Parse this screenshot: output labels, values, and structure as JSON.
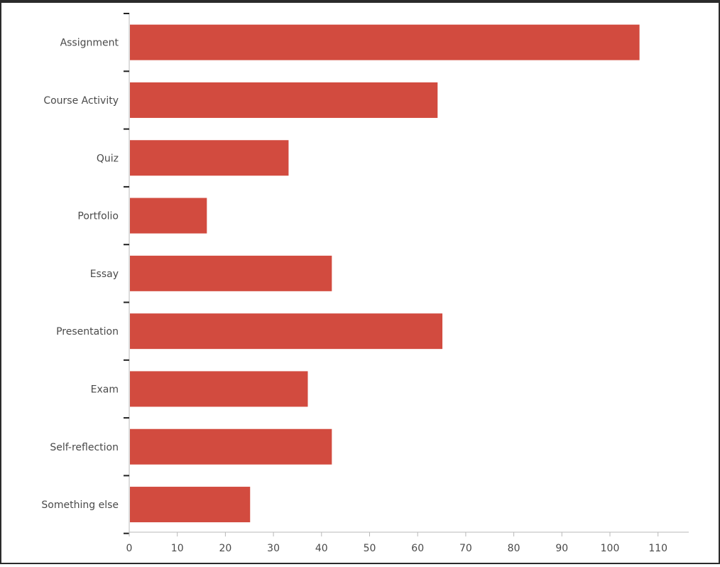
{
  "chart_data": {
    "type": "bar",
    "orientation": "horizontal",
    "title": "",
    "xlabel": "",
    "ylabel": "",
    "categories": [
      "Assignment",
      "Course Activity",
      "Quiz",
      "Portfolio",
      "Essay",
      "Presentation",
      "Exam",
      "Self-reflection",
      "Something else"
    ],
    "values": [
      106,
      64,
      33,
      16,
      42,
      65,
      37,
      42,
      25
    ],
    "xlim": [
      0,
      116
    ],
    "xticks": [
      0,
      10,
      20,
      30,
      40,
      50,
      60,
      70,
      80,
      90,
      100,
      110
    ],
    "grid": false,
    "legend": "none",
    "bar_color": "#d24b3f"
  }
}
